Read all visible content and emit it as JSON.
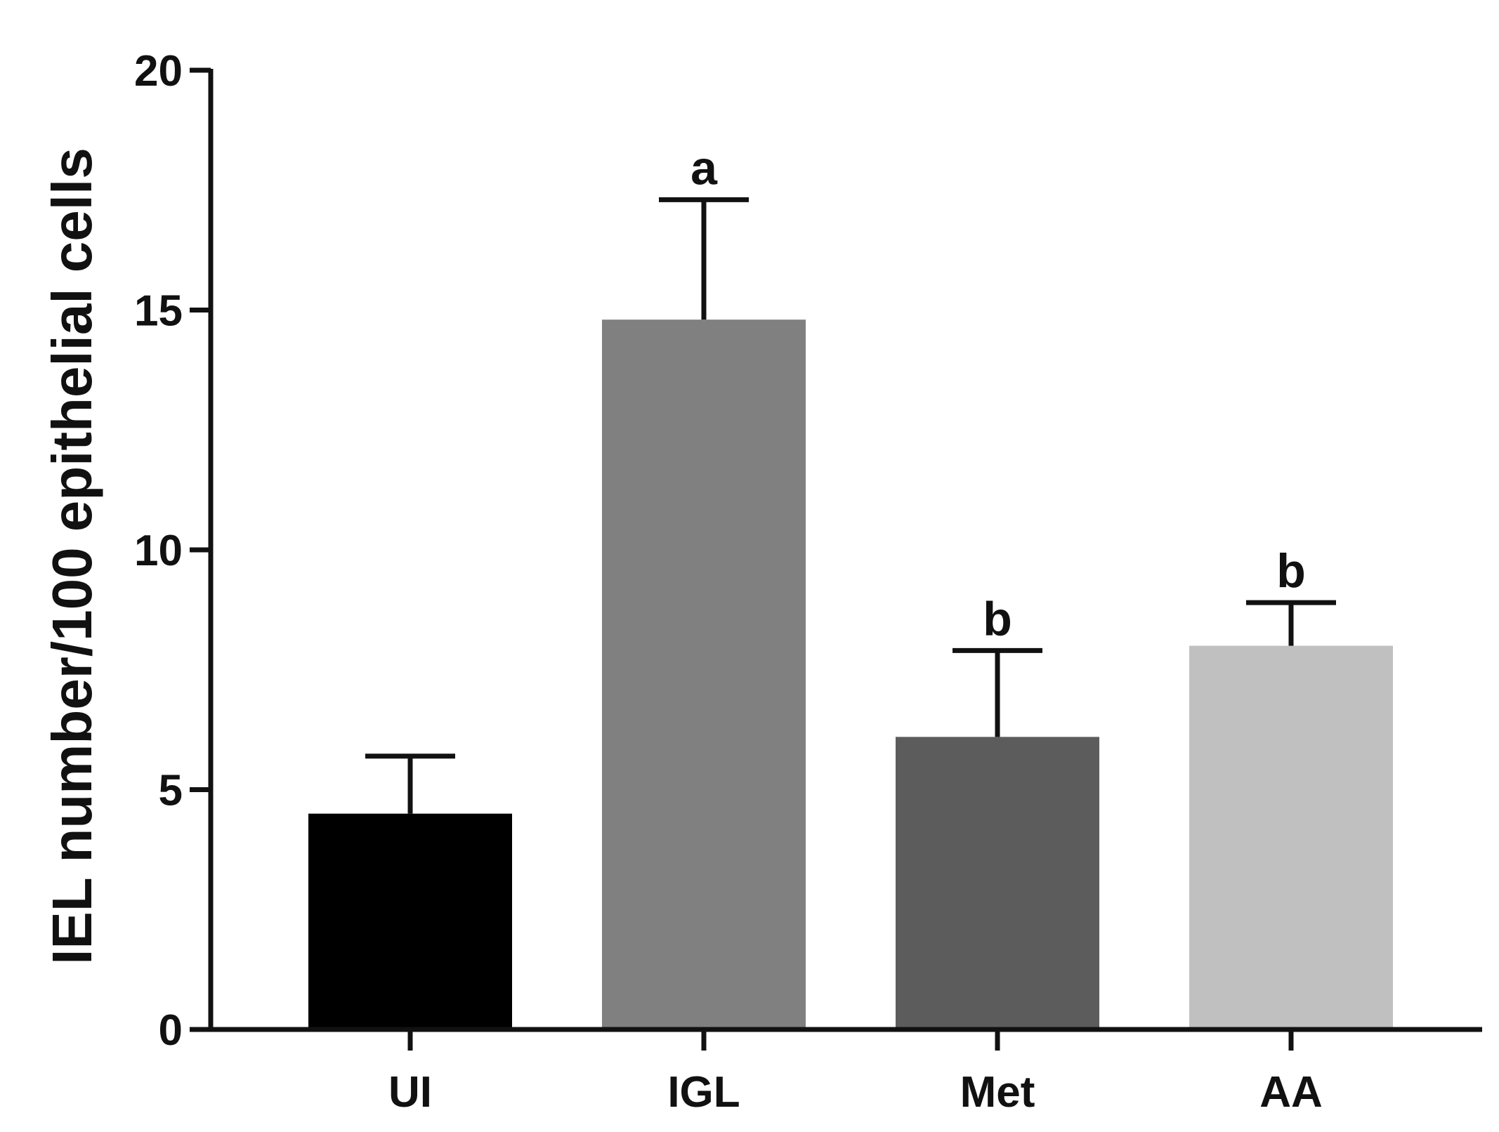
{
  "chart_data": {
    "type": "bar",
    "title": "",
    "xlabel": "",
    "ylabel": "IEL number/100 epithelial cells",
    "ylim": [
      0,
      20
    ],
    "yticks": [
      "0",
      "5",
      "10",
      "15",
      "20"
    ],
    "ytick_values": [
      0,
      5,
      10,
      15,
      20
    ],
    "categories": [
      "UI",
      "IGL",
      "Met",
      "AA"
    ],
    "values": [
      4.5,
      14.8,
      6.1,
      8.0
    ],
    "error_upper": [
      1.2,
      2.5,
      1.8,
      0.9
    ],
    "significance_labels": [
      "",
      "a",
      "b",
      "b"
    ],
    "bar_colors": [
      "#000000",
      "#808080",
      "#5c5c5c",
      "#c0c0c0"
    ],
    "grid": false,
    "legend": "none"
  }
}
